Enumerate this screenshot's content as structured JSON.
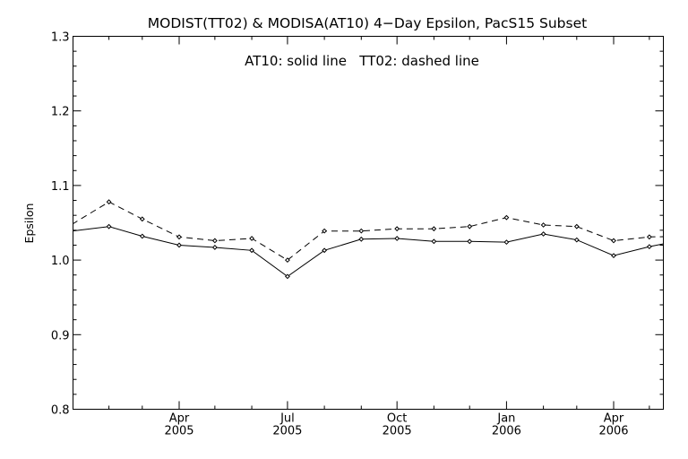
{
  "chart_data": {
    "type": "line",
    "title": "MODIST(TT02) & MODISA(AT10) 4−Day Epsilon, PacS15 Subset",
    "annotation": "AT10: solid line   TT02: dashed line",
    "ylabel": "Epsilon",
    "xlabel": "",
    "ylim": [
      0.8,
      1.3
    ],
    "y_ticks": [
      "0.8",
      "0.9",
      "1.0",
      "1.1",
      "1.2",
      "1.3"
    ],
    "x_tick_labels": [
      {
        "month": "Apr",
        "year": "2005"
      },
      {
        "month": "Jul",
        "year": "2005"
      },
      {
        "month": "Oct",
        "year": "2005"
      },
      {
        "month": "Jan",
        "year": "2006"
      },
      {
        "month": "Apr",
        "year": "2006"
      }
    ],
    "x_dates": [
      "2005-01-01",
      "2005-02-01",
      "2005-03-01",
      "2005-04-01",
      "2005-05-01",
      "2005-06-01",
      "2005-07-01",
      "2005-08-01",
      "2005-09-01",
      "2005-10-01",
      "2005-11-01",
      "2005-12-01",
      "2006-01-01",
      "2006-02-01",
      "2006-03-01",
      "2006-04-01",
      "2006-05-01",
      "2006-06-01"
    ],
    "series": [
      {
        "style": "solid",
        "values": [
          1.039,
          1.045,
          1.032,
          1.02,
          1.017,
          1.013,
          0.978,
          1.013,
          1.028,
          1.029,
          1.025,
          1.025,
          1.024,
          1.035,
          1.027,
          1.006,
          1.018,
          1.028
        ]
      },
      {
        "style": "dashed",
        "values": [
          1.048,
          1.078,
          1.055,
          1.031,
          1.026,
          1.029,
          1.0,
          1.039,
          1.039,
          1.042,
          1.042,
          1.045,
          1.057,
          1.047,
          1.045,
          1.026,
          1.031,
          1.032
        ]
      }
    ]
  }
}
